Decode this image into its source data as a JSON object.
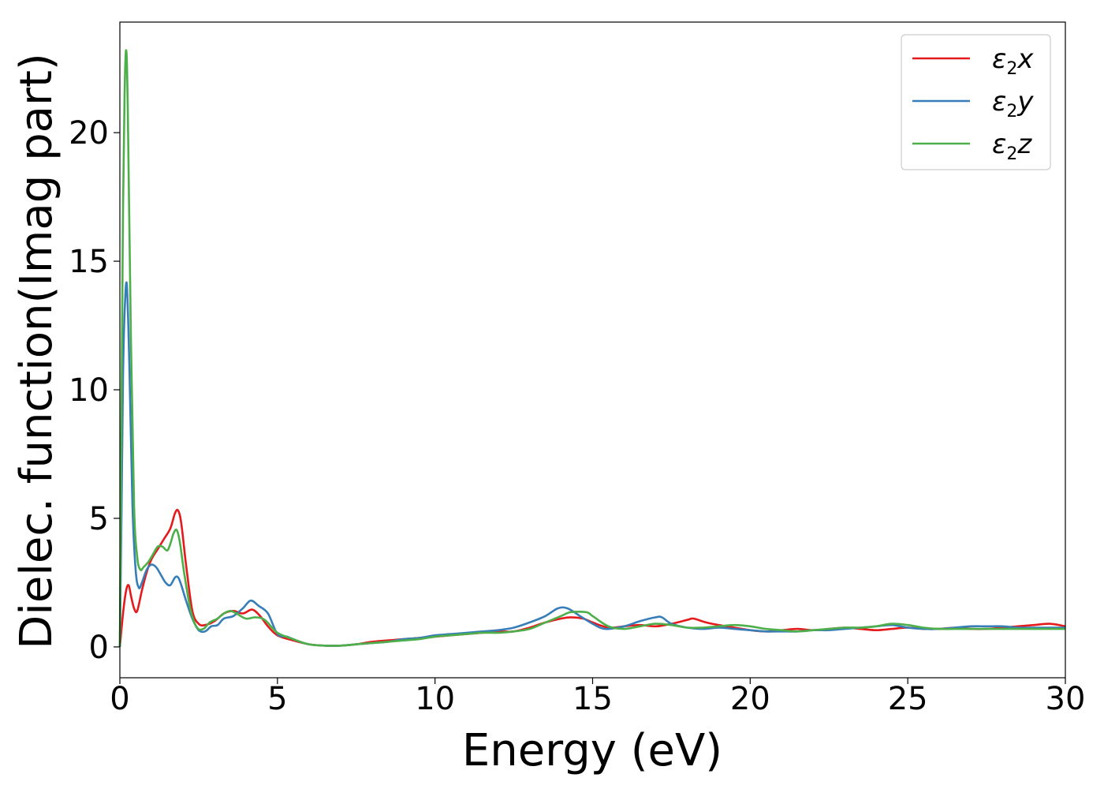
{
  "chart_data": {
    "type": "line",
    "xlabel": "Energy (eV)",
    "ylabel": "Dielec. function(Imag part)",
    "xlim": [
      0,
      30
    ],
    "ylim": [
      -1.2,
      24.3
    ],
    "xticks": [
      "0",
      "5",
      "10",
      "15",
      "20",
      "25",
      "30"
    ],
    "yticks": [
      "0",
      "5",
      "10",
      "15",
      "20"
    ],
    "grid": false,
    "legend_position": "top-right",
    "series": [
      {
        "name": "ε₂x",
        "legend_base": "ε",
        "legend_sub": "2",
        "legend_var": "x",
        "color": "#e41a1c",
        "x": [
          0,
          0.1,
          0.2,
          0.28,
          0.35,
          0.45,
          0.55,
          0.7,
          0.85,
          1.0,
          1.2,
          1.4,
          1.6,
          1.75,
          1.85,
          1.95,
          2.1,
          2.3,
          2.5,
          2.7,
          3.0,
          3.3,
          3.6,
          3.9,
          4.2,
          4.45,
          4.7,
          5.0,
          5.5,
          6.0,
          6.5,
          7.0,
          7.5,
          8.0,
          8.5,
          9.0,
          9.5,
          10.0,
          10.5,
          11.0,
          11.5,
          12.0,
          12.5,
          13.0,
          13.5,
          14.0,
          14.3,
          14.7,
          15.0,
          15.5,
          16.0,
          16.5,
          17.0,
          17.5,
          18.0,
          18.2,
          18.6,
          19.0,
          19.5,
          20.0,
          20.5,
          21.0,
          21.5,
          22.0,
          22.5,
          23.0,
          23.5,
          24.0,
          24.5,
          25.0,
          25.5,
          26.0,
          26.5,
          27.0,
          27.5,
          28.0,
          28.5,
          29.0,
          29.5,
          30.0
        ],
        "y": [
          0,
          1.3,
          2.2,
          2.4,
          2.0,
          1.5,
          1.4,
          2.2,
          2.9,
          3.4,
          3.8,
          4.2,
          4.6,
          5.2,
          5.3,
          4.8,
          3.2,
          1.4,
          0.9,
          0.85,
          1.0,
          1.3,
          1.4,
          1.3,
          1.45,
          1.2,
          0.8,
          0.45,
          0.25,
          0.1,
          0.05,
          0.05,
          0.1,
          0.2,
          0.25,
          0.3,
          0.35,
          0.4,
          0.45,
          0.5,
          0.55,
          0.6,
          0.6,
          0.75,
          0.95,
          1.1,
          1.15,
          1.1,
          0.95,
          0.75,
          0.8,
          0.85,
          0.8,
          0.9,
          1.05,
          1.1,
          0.95,
          0.85,
          0.75,
          0.65,
          0.6,
          0.65,
          0.7,
          0.65,
          0.7,
          0.75,
          0.7,
          0.65,
          0.7,
          0.75,
          0.7,
          0.7,
          0.75,
          0.7,
          0.7,
          0.75,
          0.8,
          0.85,
          0.9,
          0.8
        ]
      },
      {
        "name": "ε₂y",
        "legend_base": "ε",
        "legend_sub": "2",
        "legend_var": "y",
        "color": "#377eb8",
        "x": [
          0,
          0.05,
          0.1,
          0.15,
          0.22,
          0.3,
          0.4,
          0.5,
          0.6,
          0.7,
          0.85,
          1.0,
          1.15,
          1.3,
          1.45,
          1.6,
          1.75,
          1.85,
          1.95,
          2.1,
          2.3,
          2.5,
          2.7,
          2.9,
          3.1,
          3.3,
          3.6,
          3.9,
          4.15,
          4.4,
          4.7,
          5.0,
          5.3,
          5.6,
          6.0,
          6.5,
          7.0,
          7.5,
          8.0,
          8.5,
          9.0,
          9.5,
          10.0,
          10.5,
          11.0,
          11.5,
          12.0,
          12.5,
          13.0,
          13.5,
          13.9,
          14.2,
          14.6,
          15.0,
          15.4,
          16.0,
          16.5,
          17.0,
          17.2,
          17.5,
          18.0,
          18.5,
          19.0,
          19.5,
          20.0,
          20.5,
          21.0,
          21.5,
          22.0,
          22.5,
          23.0,
          23.5,
          24.0,
          24.5,
          25.0,
          25.5,
          26.0,
          26.5,
          27.0,
          27.5,
          28.0,
          28.5,
          29.0,
          29.5,
          30.0
        ],
        "y": [
          0,
          5.0,
          10.5,
          13.0,
          14.1,
          11.0,
          5.5,
          3.0,
          2.3,
          2.5,
          3.0,
          3.2,
          3.1,
          2.8,
          2.5,
          2.4,
          2.7,
          2.7,
          2.4,
          1.8,
          1.1,
          0.65,
          0.6,
          0.8,
          0.85,
          1.1,
          1.2,
          1.5,
          1.8,
          1.6,
          1.3,
          0.5,
          0.4,
          0.25,
          0.1,
          0.05,
          0.05,
          0.1,
          0.15,
          0.2,
          0.3,
          0.35,
          0.45,
          0.5,
          0.55,
          0.6,
          0.65,
          0.75,
          0.95,
          1.2,
          1.5,
          1.5,
          1.2,
          0.9,
          0.7,
          0.8,
          1.0,
          1.15,
          1.15,
          0.9,
          0.75,
          0.7,
          0.75,
          0.7,
          0.65,
          0.6,
          0.6,
          0.6,
          0.65,
          0.65,
          0.7,
          0.75,
          0.8,
          0.85,
          0.75,
          0.7,
          0.7,
          0.75,
          0.8,
          0.8,
          0.8,
          0.75,
          0.75,
          0.75,
          0.75
        ]
      },
      {
        "name": "ε₂z",
        "legend_base": "ε",
        "legend_sub": "2",
        "legend_var": "z",
        "color": "#4daf4a",
        "x": [
          0,
          0.05,
          0.1,
          0.15,
          0.2,
          0.25,
          0.35,
          0.45,
          0.55,
          0.65,
          0.75,
          0.9,
          1.05,
          1.2,
          1.35,
          1.5,
          1.6,
          1.7,
          1.8,
          1.9,
          2.05,
          2.25,
          2.45,
          2.65,
          2.85,
          3.1,
          3.3,
          3.5,
          3.7,
          4.0,
          4.3,
          4.6,
          5.0,
          5.5,
          6.0,
          6.5,
          7.0,
          7.5,
          8.0,
          8.5,
          9.0,
          9.5,
          10.0,
          10.5,
          11.0,
          11.5,
          12.0,
          12.5,
          13.0,
          13.5,
          14.0,
          14.3,
          14.8,
          15.0,
          15.5,
          16.0,
          16.5,
          17.0,
          17.5,
          18.0,
          18.5,
          19.0,
          19.5,
          20.0,
          20.5,
          21.0,
          21.5,
          22.0,
          22.5,
          23.0,
          23.5,
          24.0,
          24.5,
          25.0,
          25.5,
          26.0,
          26.5,
          27.0,
          27.5,
          28.0,
          28.5,
          29.0,
          29.5,
          30.0
        ],
        "y": [
          0,
          9.0,
          17.0,
          21.5,
          23.2,
          21.0,
          12.0,
          5.5,
          3.5,
          3.0,
          3.1,
          3.3,
          3.6,
          3.9,
          3.9,
          3.75,
          4.0,
          4.4,
          4.55,
          4.1,
          2.8,
          1.4,
          0.75,
          0.7,
          0.95,
          1.1,
          1.3,
          1.4,
          1.3,
          1.1,
          1.15,
          1.05,
          0.55,
          0.3,
          0.1,
          0.05,
          0.05,
          0.1,
          0.15,
          0.2,
          0.25,
          0.3,
          0.4,
          0.45,
          0.5,
          0.55,
          0.55,
          0.6,
          0.7,
          0.95,
          1.2,
          1.35,
          1.35,
          1.2,
          0.8,
          0.7,
          0.8,
          0.9,
          0.85,
          0.75,
          0.75,
          0.8,
          0.85,
          0.8,
          0.7,
          0.65,
          0.6,
          0.65,
          0.7,
          0.75,
          0.75,
          0.8,
          0.9,
          0.85,
          0.75,
          0.7,
          0.7,
          0.7,
          0.7,
          0.7,
          0.7,
          0.7,
          0.7,
          0.7
        ]
      }
    ]
  }
}
